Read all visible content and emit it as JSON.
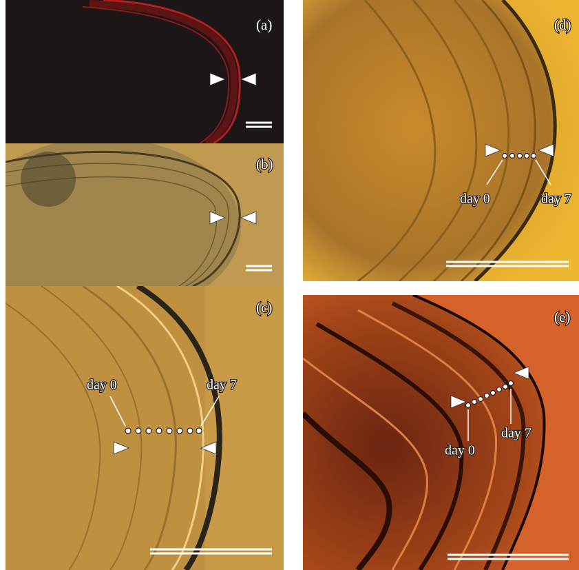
{
  "panels": [
    {
      "label": "(a)"
    },
    {
      "label": "(b)"
    },
    {
      "label": "(c)",
      "annotations": [
        "day 0",
        "day 7"
      ]
    },
    {
      "label": "(d)",
      "annotations": [
        "day 0",
        "day 7"
      ]
    },
    {
      "label": "(e)",
      "annotations": [
        "day 0",
        "day 7"
      ]
    }
  ]
}
